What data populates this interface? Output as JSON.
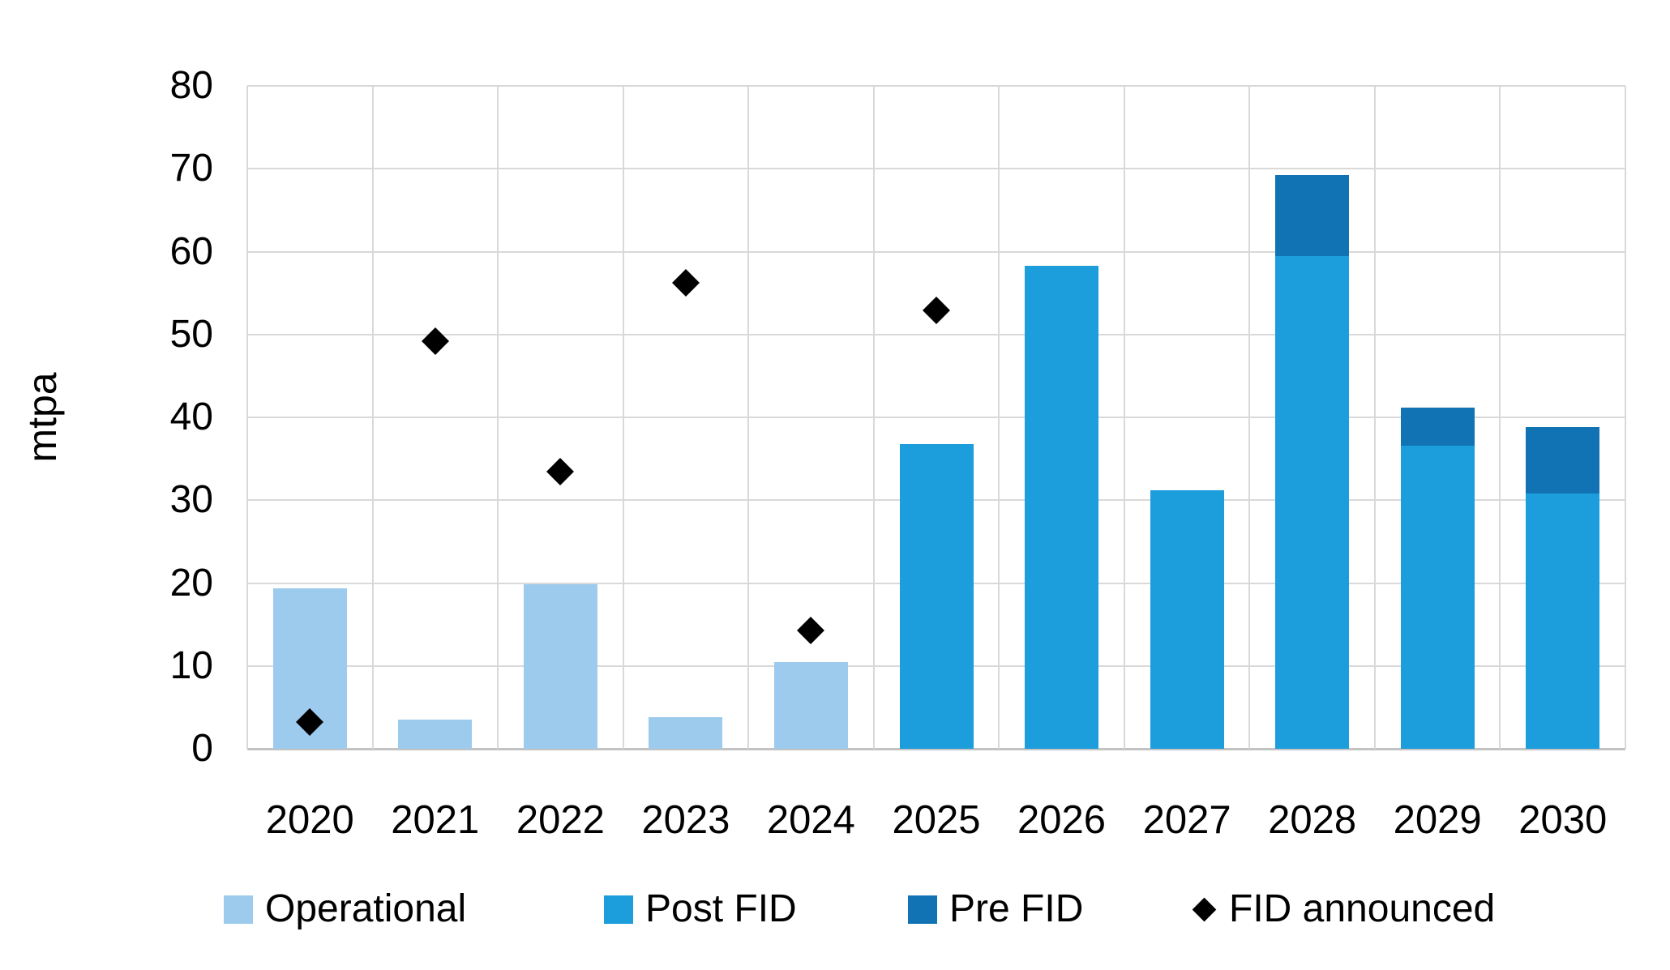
{
  "chart_data": {
    "type": "bar",
    "stacked": true,
    "title": "",
    "xlabel": "",
    "ylabel": "mtpa",
    "categories": [
      "2020",
      "2021",
      "2022",
      "2023",
      "2024",
      "2025",
      "2026",
      "2027",
      "2028",
      "2029",
      "2030"
    ],
    "series": [
      {
        "name": "Operational",
        "type": "bar",
        "color": "#9dcbee",
        "values": [
          19.4,
          3.5,
          19.9,
          3.8,
          10.5,
          0,
          0,
          0,
          0,
          0,
          0
        ]
      },
      {
        "name": "Post FID",
        "type": "bar",
        "color": "#1c9ddc",
        "values": [
          0,
          0,
          0,
          0,
          0,
          36.8,
          58.3,
          31.2,
          59.5,
          36.6,
          30.8
        ]
      },
      {
        "name": "Pre FID",
        "type": "bar",
        "color": "#1273b4",
        "values": [
          0,
          0,
          0,
          0,
          0,
          0,
          0,
          0,
          9.7,
          4.6,
          8.0
        ]
      },
      {
        "name": "FID announced",
        "type": "scatter",
        "marker": "diamond",
        "color": "#000000",
        "values": [
          3.2,
          49.2,
          33.4,
          56.2,
          14.3,
          52.9,
          null,
          null,
          null,
          null,
          null
        ]
      }
    ],
    "ylim": [
      0,
      80
    ],
    "yticks": [
      0,
      10,
      20,
      30,
      40,
      50,
      60,
      70,
      80
    ],
    "grid": true,
    "legend_position": "bottom"
  },
  "colors": {
    "background": "#ffffff",
    "gridline": "#d9d9d9",
    "axis_line": "#c3c3c3",
    "text": "#000000",
    "operational": "#9dcbee",
    "post_fid": "#1c9ddc",
    "pre_fid": "#1273b4",
    "fid_announced": "#000000"
  }
}
